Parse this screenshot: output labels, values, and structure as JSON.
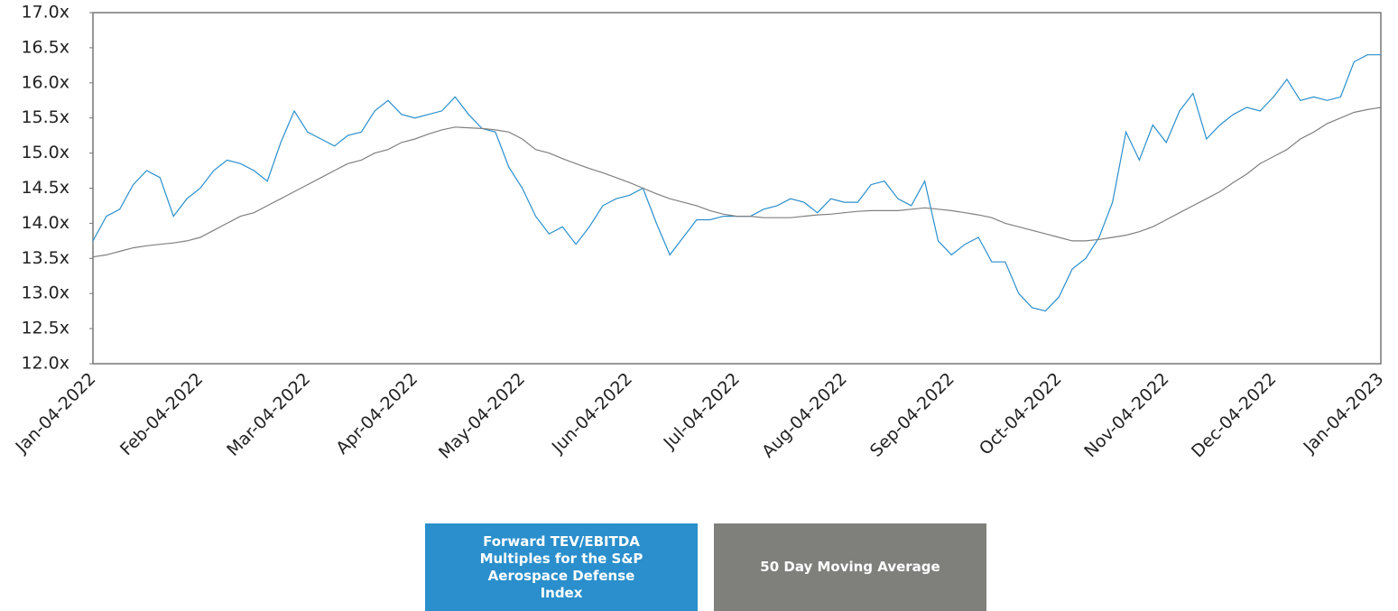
{
  "chart_data": {
    "type": "line",
    "categories": [
      "Jan-04-2022",
      null,
      null,
      null,
      null,
      null,
      null,
      null,
      "Feb-04-2022",
      null,
      null,
      null,
      null,
      null,
      null,
      null,
      "Mar-04-2022",
      null,
      null,
      null,
      null,
      null,
      null,
      null,
      "Apr-04-2022",
      null,
      null,
      null,
      null,
      null,
      null,
      null,
      "May-04-2022",
      null,
      null,
      null,
      null,
      null,
      null,
      null,
      "Jun-04-2022",
      null,
      null,
      null,
      null,
      null,
      null,
      null,
      "Jul-04-2022",
      null,
      null,
      null,
      null,
      null,
      null,
      null,
      "Aug-04-2022",
      null,
      null,
      null,
      null,
      null,
      null,
      null,
      "Sep-04-2022",
      null,
      null,
      null,
      null,
      null,
      null,
      null,
      "Oct-04-2022",
      null,
      null,
      null,
      null,
      null,
      null,
      null,
      "Nov-04-2022",
      null,
      null,
      null,
      null,
      null,
      null,
      null,
      "Dec-04-2022",
      null,
      null,
      null,
      null,
      null,
      null,
      null,
      "Jan-04-2023"
    ],
    "series": [
      {
        "name": "Forward TEV/EBITDA Multiples for the S&P Aerospace Defense Index",
        "color": "#2a8fcc",
        "values": [
          13.75,
          14.1,
          14.2,
          14.55,
          14.75,
          14.65,
          14.1,
          14.35,
          14.5,
          14.75,
          14.9,
          14.85,
          14.75,
          14.6,
          15.15,
          15.6,
          15.3,
          15.2,
          15.1,
          15.25,
          15.3,
          15.6,
          15.75,
          15.55,
          15.5,
          15.55,
          15.6,
          15.8,
          15.55,
          15.35,
          15.3,
          14.8,
          14.5,
          14.1,
          13.85,
          13.95,
          13.7,
          13.95,
          14.25,
          14.35,
          14.4,
          14.5,
          14.0,
          13.55,
          13.8,
          14.05,
          14.05,
          14.1,
          14.1,
          14.1,
          14.2,
          14.25,
          14.35,
          14.3,
          14.15,
          14.35,
          14.3,
          14.3,
          14.55,
          14.6,
          14.35,
          14.25,
          14.6,
          13.75,
          13.55,
          13.7,
          13.8,
          13.45,
          13.45,
          13.0,
          12.8,
          12.75,
          12.95,
          13.35,
          13.5,
          13.8,
          14.3,
          15.3,
          14.9,
          15.4,
          15.15,
          15.6,
          15.85,
          15.2,
          15.4,
          15.55,
          15.65,
          15.6,
          15.8,
          16.05,
          15.75,
          15.8,
          15.75,
          15.8,
          16.3,
          16.4,
          16.4
        ]
      },
      {
        "name": "50 Day Moving Average",
        "color": "#808080",
        "values": [
          13.52,
          13.55,
          13.6,
          13.65,
          13.68,
          13.7,
          13.72,
          13.75,
          13.8,
          13.9,
          14.0,
          14.1,
          14.15,
          14.25,
          14.35,
          14.45,
          14.55,
          14.65,
          14.75,
          14.85,
          14.9,
          15.0,
          15.05,
          15.15,
          15.2,
          15.27,
          15.33,
          15.37,
          15.36,
          15.35,
          15.33,
          15.3,
          15.2,
          15.05,
          15.0,
          14.92,
          14.85,
          14.78,
          14.72,
          14.65,
          14.58,
          14.5,
          14.42,
          14.35,
          14.3,
          14.25,
          14.18,
          14.13,
          14.1,
          14.1,
          14.08,
          14.08,
          14.08,
          14.1,
          14.12,
          14.13,
          14.15,
          14.17,
          14.18,
          14.18,
          14.18,
          14.2,
          14.22,
          14.2,
          14.18,
          14.15,
          14.12,
          14.08,
          14.0,
          13.95,
          13.9,
          13.85,
          13.8,
          13.75,
          13.75,
          13.77,
          13.8,
          13.83,
          13.88,
          13.95,
          14.05,
          14.15,
          14.25,
          14.35,
          14.45,
          14.58,
          14.7,
          14.85,
          14.95,
          15.05,
          15.2,
          15.3,
          15.42,
          15.5,
          15.58,
          15.62,
          15.65
        ]
      }
    ],
    "ylim": [
      12,
      17
    ],
    "yticks": [
      {
        "value": 12,
        "label": "12.0x"
      },
      {
        "value": 12.5,
        "label": "12.5x"
      },
      {
        "value": 13,
        "label": "13.0x"
      },
      {
        "value": 13.5,
        "label": "13.5x"
      },
      {
        "value": 14,
        "label": "14.0x"
      },
      {
        "value": 14.5,
        "label": "14.5x"
      },
      {
        "value": 15,
        "label": "15.0x"
      },
      {
        "value": 15.5,
        "label": "15.5x"
      },
      {
        "value": 16,
        "label": "16.0x"
      },
      {
        "value": 16.5,
        "label": "16.5x"
      },
      {
        "value": 17,
        "label": "17.0x"
      }
    ],
    "grid": false
  }
}
